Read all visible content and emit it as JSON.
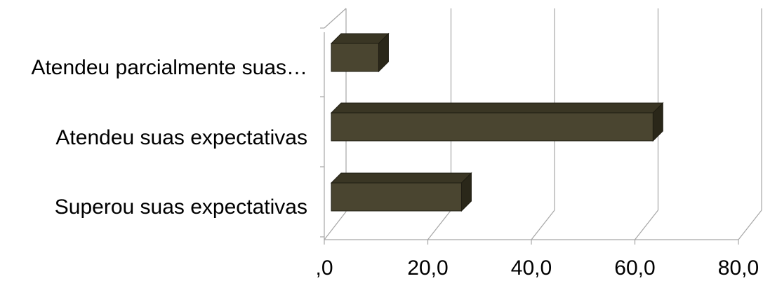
{
  "chart_data": {
    "type": "bar",
    "orientation": "horizontal",
    "three_d": true,
    "categories": [
      "Superou suas expectativas",
      "Atendeu suas expectativas",
      "Atendeu parcialmente suas…"
    ],
    "values": [
      26.5,
      63.5,
      10.5
    ],
    "xlim": [
      0,
      80
    ],
    "x_ticks": [
      ",0",
      "20,0",
      "40,0",
      "60,0",
      "80,0"
    ],
    "title": "",
    "xlabel": "",
    "ylabel": "",
    "grid": true,
    "legend": "none",
    "bar_color": "#4a4530",
    "bar_top_color": "#3a3624",
    "bar_side_color": "#2a2719",
    "grid_color": "#a6a6a6"
  }
}
